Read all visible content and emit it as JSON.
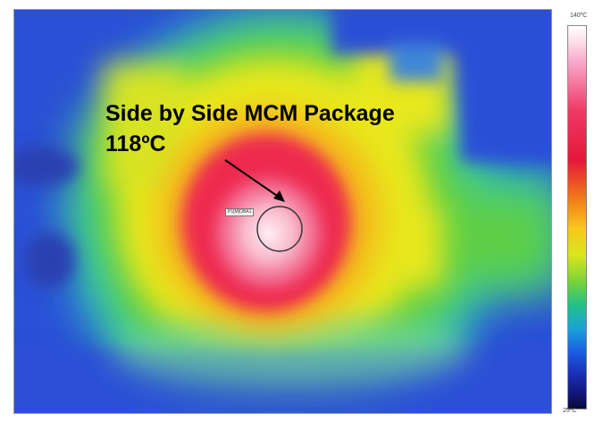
{
  "annotation": {
    "title": "Side by Side MCM Package",
    "temperature": "118ºC"
  },
  "spot_marker": {
    "label": "P1[M]OBA1"
  },
  "color_scale": {
    "max_label": "140ºC",
    "min_label": "25ºC",
    "colors": [
      "#ffffff",
      "#ef3a66",
      "#e5173a",
      "#f07a1a",
      "#f7c81c",
      "#76d23b",
      "#1aa4d6",
      "#1b5fe3",
      "#10126b"
    ]
  },
  "thermal_palette": {
    "background": "#2b4fd6",
    "cyan": "#27c9c4",
    "green": "#66d13f",
    "yellow": "#e8e81e",
    "orange": "#f5b51b",
    "red": "#ee2a4f",
    "pink": "#f7a6bf",
    "white": "#ffe6ee"
  }
}
